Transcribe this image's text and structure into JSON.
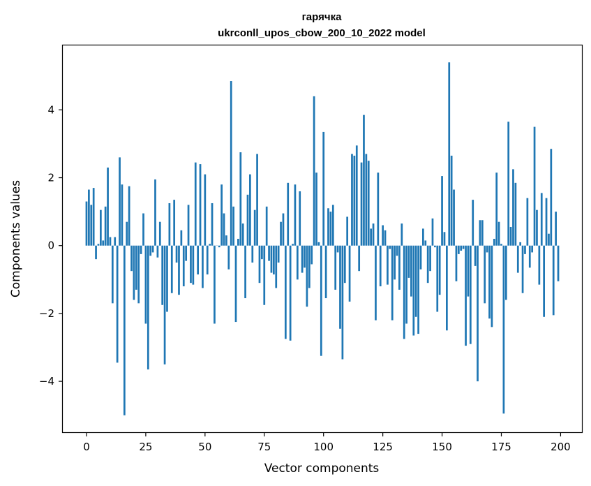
{
  "chart_data": {
    "type": "bar",
    "title": "гарячка",
    "subtitle": "ukrconll_upos_cbow_200_10_2022 model",
    "xlabel": "Vector components",
    "ylabel": "Components values",
    "xlim": [
      -10,
      209
    ],
    "ylim": [
      -5.5,
      5.9
    ],
    "xticks": [
      0,
      25,
      50,
      75,
      100,
      125,
      150,
      175,
      200
    ],
    "yticks": [
      -4,
      -2,
      0,
      2,
      4
    ],
    "ytick_labels": [
      "−4",
      "−2",
      "0",
      "2",
      "4"
    ],
    "grid": false,
    "bar_color": "#1f77b4",
    "values": [
      1.3,
      1.65,
      1.2,
      1.7,
      -0.4,
      0.05,
      1.05,
      0.15,
      1.15,
      2.3,
      0.25,
      -1.7,
      0.25,
      -3.45,
      2.6,
      1.8,
      -5.0,
      0.7,
      1.75,
      -0.75,
      -1.6,
      -1.3,
      -1.7,
      -0.25,
      0.95,
      -2.3,
      -3.65,
      -0.3,
      -0.2,
      1.95,
      -0.35,
      0.7,
      -1.75,
      -3.5,
      -1.95,
      1.25,
      -1.4,
      1.35,
      -0.5,
      -1.45,
      0.45,
      -1.2,
      -0.45,
      1.2,
      -1.1,
      -1.15,
      2.45,
      -0.85,
      2.4,
      -1.25,
      2.1,
      -0.85,
      0.05,
      1.25,
      -2.3,
      0.0,
      -0.05,
      1.8,
      0.95,
      0.3,
      -0.7,
      4.85,
      1.15,
      -2.25,
      0.2,
      2.75,
      0.65,
      -1.55,
      1.5,
      2.1,
      -0.5,
      1.05,
      2.7,
      -1.1,
      -0.4,
      -1.75,
      1.15,
      -0.45,
      -0.8,
      -0.85,
      -1.25,
      -0.5,
      0.7,
      0.95,
      -2.75,
      1.85,
      -2.8,
      0.05,
      1.8,
      -1.0,
      1.6,
      -0.8,
      -0.65,
      -1.8,
      -1.25,
      -0.55,
      4.4,
      2.15,
      0.1,
      -3.25,
      3.35,
      -1.55,
      1.1,
      1.0,
      1.2,
      -1.3,
      -0.2,
      -2.45,
      -3.35,
      -1.1,
      0.85,
      -1.65,
      2.7,
      2.65,
      2.95,
      -0.75,
      2.45,
      3.85,
      2.7,
      2.5,
      0.5,
      0.65,
      -2.2,
      2.15,
      -1.2,
      0.6,
      0.45,
      -1.15,
      -0.1,
      -2.2,
      -1.0,
      -0.3,
      -1.3,
      0.65,
      -2.75,
      -2.3,
      -0.95,
      -1.5,
      -2.65,
      -2.1,
      -2.6,
      -0.7,
      0.5,
      0.15,
      -1.1,
      -0.75,
      0.8,
      -0.05,
      -1.95,
      -1.45,
      2.05,
      0.4,
      -2.5,
      5.4,
      2.65,
      1.65,
      -1.05,
      -0.25,
      -0.15,
      -0.1,
      -2.95,
      -1.5,
      -2.9,
      1.35,
      -0.6,
      -4.0,
      0.75,
      0.75,
      -1.7,
      -0.2,
      -2.15,
      -2.4,
      0.2,
      2.15,
      0.7,
      0.05,
      -4.95,
      -1.6,
      3.65,
      0.55,
      2.25,
      1.85,
      -0.8,
      0.1,
      -1.4,
      -0.25,
      1.4,
      -0.65,
      -0.2,
      3.5,
      1.05,
      -1.15,
      1.55,
      -2.1,
      1.4,
      0.35,
      2.85,
      -2.05,
      1.0,
      -1.05
    ]
  }
}
